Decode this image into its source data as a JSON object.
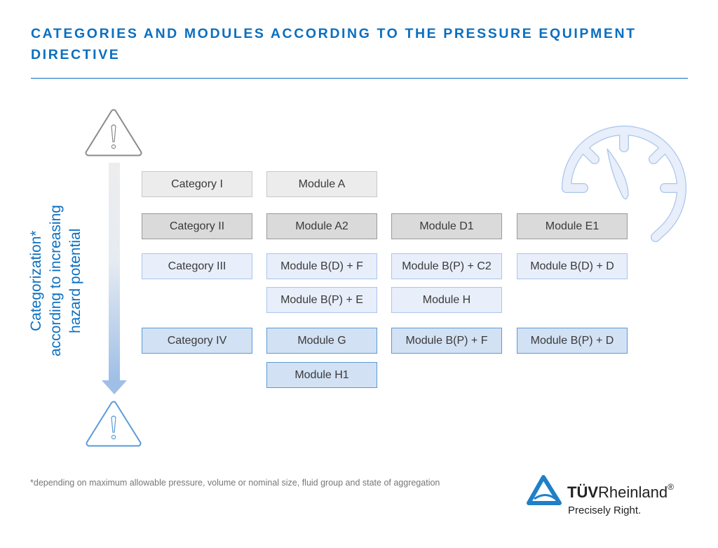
{
  "header": {
    "title": "CATEGORIES AND MODULES ACCORDING TO THE PRESSURE EQUIPMENT DIRECTIVE"
  },
  "axis_label": {
    "line1": "Categorization*",
    "line2": "according to increasing",
    "line3": "hazard potential"
  },
  "rows": [
    {
      "category": "Category I",
      "modules": [
        "Module A"
      ]
    },
    {
      "category": "Category II",
      "modules": [
        "Module A2",
        "Module D1",
        "Module E1"
      ]
    },
    {
      "category": "Category III",
      "modules": [
        "Module B(D) + F",
        "Module B(P) + C2",
        "Module B(D) + D"
      ],
      "extra_modules": [
        "Module B(P) + E",
        "Module H"
      ]
    },
    {
      "category": "Category IV",
      "modules": [
        "Module G",
        "Module B(P) + F",
        "Module B(P) + D"
      ],
      "extra_modules": [
        "Module H1"
      ]
    }
  ],
  "footnote": "*depending on maximum allowable pressure, volume  or nominal size, fluid group and state of aggregation",
  "logo": {
    "brand_bold": "TÜV",
    "brand_regular": "Rheinland",
    "registered": "®",
    "slogan": "Precisely Right."
  },
  "colors": {
    "accent": "#0a6fc0",
    "grey_light": "#ececec",
    "grey_dark": "#d9dad9",
    "blue_light": "#e8eefa",
    "blue_mid": "#d3e1f4"
  },
  "icons": [
    "warning-triangle-icon",
    "hazard-arrow-icon",
    "pressure-gauge-icon",
    "tuv-logo-icon"
  ]
}
